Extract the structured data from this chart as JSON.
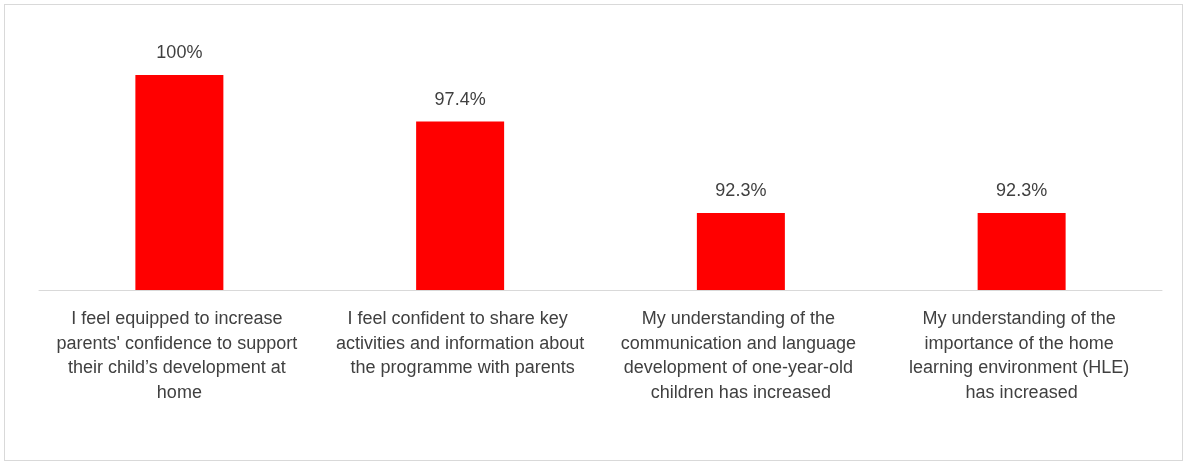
{
  "chart_data": {
    "type": "bar",
    "categories": [
      "I feel equipped to increase parents' confidence to support their child’s development at home",
      "I feel confident to share key activities and information about the programme with parents",
      "My understanding of the communication and language development of one-year-old children has increased",
      "My understanding of the importance of the home learning environment (HLE) has increased"
    ],
    "values": [
      100,
      97.4,
      92.3,
      92.3
    ],
    "value_labels": [
      "100%",
      "97.4%",
      "92.3%",
      "92.3%"
    ],
    "color": "#ff0000",
    "ylim": [
      88,
      100
    ],
    "tick_labels": "x",
    "grid": false
  }
}
